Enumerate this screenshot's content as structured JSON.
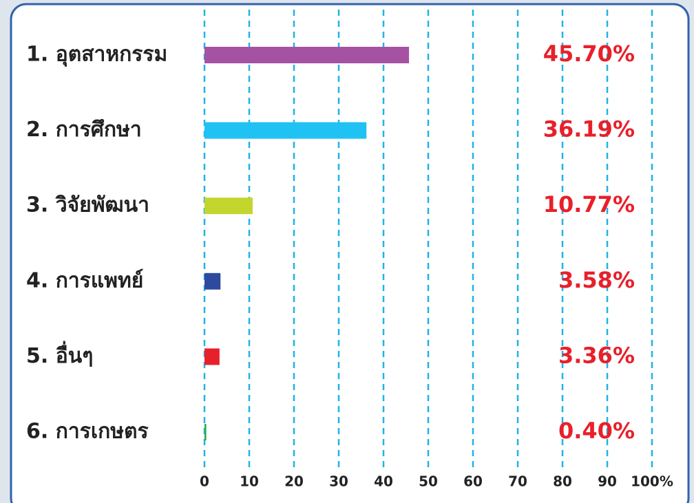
{
  "chart_data": {
    "type": "bar",
    "orientation": "horizontal",
    "categories": [
      "1. อุตสาหกรรม",
      "2. การศึกษา",
      "3. วิจัยพัฒนา",
      "4. การแพทย์",
      "5. อื่นๆ",
      "6. การเกษตร"
    ],
    "values": [
      45.7,
      36.19,
      10.77,
      3.58,
      3.36,
      0.4
    ],
    "value_labels": [
      "45.70%",
      "36.19%",
      "10.77%",
      "3.58%",
      "3.36%",
      "0.40%"
    ],
    "colors": [
      "#a652a3",
      "#1fc2f2",
      "#c2d62d",
      "#2e4a9e",
      "#e8202a",
      "#22b04b"
    ],
    "xlim": [
      0,
      100
    ],
    "xticks": [
      0,
      10,
      20,
      30,
      40,
      50,
      60,
      70,
      80,
      90,
      {
        "value": 100,
        "label": "100%"
      }
    ],
    "grid": true
  }
}
